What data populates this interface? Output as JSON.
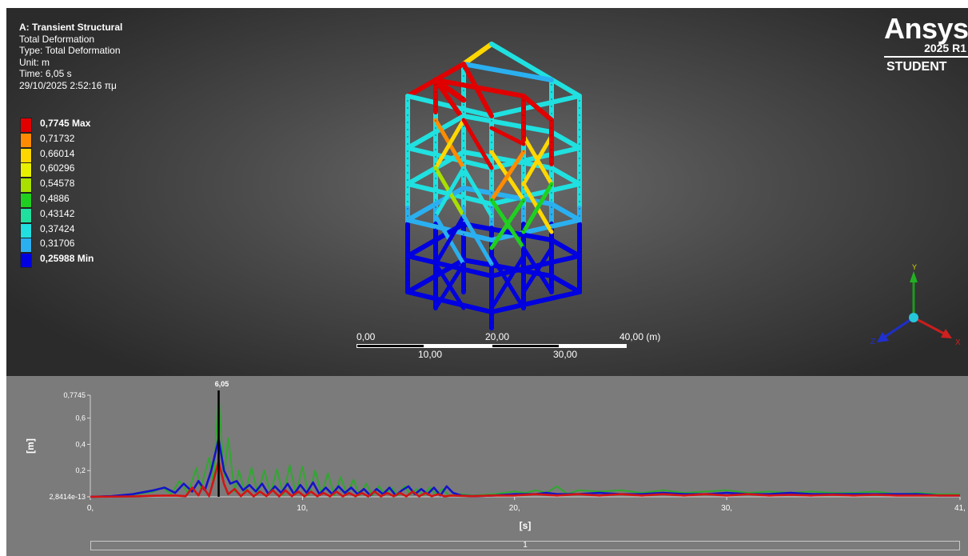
{
  "info": {
    "title": "A: Transient Structural",
    "result_name": "Total Deformation",
    "type": "Type: Total Deformation",
    "unit": "Unit: m",
    "time": "Time: 6,05 s",
    "timestamp": "29/10/2025 2:52:16 πμ"
  },
  "legend": [
    {
      "label": "0,7745 Max",
      "color": "#e00000"
    },
    {
      "label": "0,71732",
      "color": "#ff8c00"
    },
    {
      "label": "0,66014",
      "color": "#ffd700"
    },
    {
      "label": "0,60296",
      "color": "#e8f000"
    },
    {
      "label": "0,54578",
      "color": "#a8e000"
    },
    {
      "label": "0,4886",
      "color": "#20d020"
    },
    {
      "label": "0,43142",
      "color": "#20e0a0"
    },
    {
      "label": "0,37424",
      "color": "#20e0e0"
    },
    {
      "label": "0,31706",
      "color": "#2ab0f0"
    },
    {
      "label": "0,25988 Min",
      "color": "#0000e0"
    }
  ],
  "brand": {
    "name": "Ansys",
    "release": "2025 R1",
    "edition": "STUDENT"
  },
  "scale_bar": {
    "top_labels": [
      "0,00",
      "20,00",
      "40,00 (m)"
    ],
    "bottom_labels": [
      "10,00",
      "30,00"
    ]
  },
  "triad": {
    "x_label": "X",
    "y_label": "Y",
    "z_label": "Z"
  },
  "chart_data": {
    "type": "line",
    "title": "",
    "xlabel": "[s]",
    "ylabel": "[m]",
    "xlim": [
      0,
      41
    ],
    "ylim": [
      2.8414e-13,
      0.7745
    ],
    "x_ticks": [
      "0,",
      "10,",
      "20,",
      "30,",
      "41,"
    ],
    "y_ticks": [
      "2,8414e-13",
      "0,2",
      "0,4",
      "0,6",
      "0,7745"
    ],
    "cursor": {
      "x": 6.05,
      "label": "6,05"
    },
    "step_label": "1",
    "series": [
      {
        "color": "#2fa82f",
        "x": [
          0,
          1,
          2,
          3,
          3.4,
          3.8,
          4.2,
          4.6,
          5,
          5.2,
          5.6,
          5.8,
          6.05,
          6.3,
          6.5,
          6.8,
          7,
          7.3,
          7.6,
          7.9,
          8.2,
          8.5,
          8.8,
          9.1,
          9.4,
          9.7,
          10,
          10.3,
          10.6,
          10.9,
          11.2,
          11.5,
          11.8,
          12.1,
          12.4,
          12.7,
          13,
          13.3,
          13.6,
          13.9,
          14.2,
          14.5,
          14.8,
          15.1,
          15.4,
          15.7,
          16,
          16.3,
          16.6,
          16.9,
          17.5,
          18,
          19,
          20,
          20.5,
          21,
          21.5,
          22,
          22.5,
          23,
          24,
          25,
          26,
          27,
          28,
          29,
          30,
          31,
          32,
          33,
          34,
          35,
          36,
          37,
          38,
          39,
          40,
          41
        ],
        "y": [
          0,
          0.005,
          0.015,
          0.04,
          0.07,
          0.02,
          0.12,
          0.03,
          0.22,
          0.06,
          0.3,
          0.1,
          0.7745,
          0.15,
          0.45,
          0.04,
          0.2,
          0.03,
          0.22,
          0.02,
          0.2,
          0.03,
          0.21,
          0.01,
          0.24,
          0.02,
          0.23,
          0.01,
          0.2,
          0.02,
          0.18,
          0.01,
          0.15,
          0.02,
          0.13,
          0.01,
          0.1,
          0.01,
          0.08,
          0.02,
          0.07,
          0.01,
          0.08,
          0.02,
          0.06,
          0.01,
          0.07,
          0.02,
          0.06,
          0.01,
          0.02,
          0.01,
          0.02,
          0.04,
          0.03,
          0.05,
          0.03,
          0.08,
          0.02,
          0.05,
          0.04,
          0.05,
          0.03,
          0.05,
          0.03,
          0.04,
          0.05,
          0.03,
          0.04,
          0.03,
          0.04,
          0.03,
          0.03,
          0.04,
          0.02,
          0.03,
          0.02,
          0.02
        ]
      },
      {
        "color": "#1414c8",
        "x": [
          0,
          1,
          2,
          3,
          3.5,
          4,
          4.4,
          4.8,
          5.1,
          5.4,
          5.7,
          6.05,
          6.3,
          6.6,
          6.9,
          7.2,
          7.5,
          7.8,
          8.1,
          8.4,
          8.7,
          9,
          9.3,
          9.6,
          9.9,
          10.2,
          10.5,
          10.8,
          11.1,
          11.4,
          11.7,
          12,
          12.3,
          12.6,
          12.9,
          13.2,
          13.5,
          13.8,
          14.1,
          14.4,
          14.7,
          15,
          15.3,
          15.6,
          15.9,
          16.2,
          16.5,
          16.8,
          17.1,
          17.5,
          18,
          19,
          20,
          21,
          21.5,
          22,
          23,
          24,
          25,
          26,
          27,
          28,
          29,
          30,
          31,
          32,
          33,
          34,
          35,
          36,
          37,
          38,
          39,
          40,
          41
        ],
        "y": [
          0,
          0.005,
          0.02,
          0.05,
          0.07,
          0.03,
          0.1,
          0.04,
          0.12,
          0.05,
          0.2,
          0.44,
          0.2,
          0.1,
          0.12,
          0.05,
          0.09,
          0.04,
          0.1,
          0.02,
          0.08,
          0.03,
          0.1,
          0.02,
          0.09,
          0.03,
          0.11,
          0.02,
          0.07,
          0.02,
          0.08,
          0.03,
          0.07,
          0.02,
          0.06,
          0.01,
          0.06,
          0.02,
          0.07,
          0.01,
          0.05,
          0.08,
          0.02,
          0.06,
          0.02,
          0.07,
          0.01,
          0.08,
          0.03,
          0.01,
          0.005,
          0.01,
          0.02,
          0.02,
          0.03,
          0.02,
          0.02,
          0.03,
          0.02,
          0.02,
          0.03,
          0.02,
          0.02,
          0.03,
          0.02,
          0.02,
          0.03,
          0.02,
          0.02,
          0.02,
          0.02,
          0.02,
          0.02,
          0.01,
          0.01
        ]
      },
      {
        "color": "#d21414",
        "x": [
          0,
          2,
          3,
          4,
          4.5,
          4.8,
          5.1,
          5.3,
          5.6,
          5.8,
          6.05,
          6.3,
          6.5,
          6.8,
          7.1,
          7.4,
          7.7,
          8,
          8.3,
          8.6,
          8.9,
          9.2,
          9.5,
          9.8,
          10.1,
          10.4,
          10.7,
          11,
          11.3,
          11.6,
          11.9,
          12.2,
          12.5,
          12.8,
          13.1,
          13.4,
          13.7,
          14,
          14.3,
          14.6,
          14.9,
          15.2,
          15.5,
          15.8,
          16.1,
          16.4,
          16.7,
          17,
          18,
          19,
          20,
          21,
          22,
          23,
          24,
          25,
          26,
          27,
          28,
          29,
          30,
          31,
          32,
          33,
          34,
          35,
          36,
          37,
          38,
          39,
          40,
          41
        ],
        "y": [
          0,
          0.003,
          0.008,
          0.01,
          0.005,
          0.07,
          0.01,
          0.08,
          0.005,
          0.12,
          0.27,
          0.1,
          0.02,
          0.06,
          0.005,
          0.05,
          0.003,
          0.04,
          0.005,
          0.05,
          0.003,
          0.05,
          0.004,
          0.04,
          0.003,
          0.04,
          0.004,
          0.03,
          0.003,
          0.04,
          0.003,
          0.03,
          0.004,
          0.03,
          0.003,
          0.04,
          0.003,
          0.03,
          0.004,
          0.03,
          0.003,
          0.04,
          0.003,
          0.03,
          0.004,
          0.02,
          0.003,
          0.01,
          0.005,
          0.01,
          0.01,
          0.02,
          0.01,
          0.02,
          0.01,
          0.02,
          0.01,
          0.02,
          0.01,
          0.02,
          0.01,
          0.02,
          0.01,
          0.015,
          0.01,
          0.015,
          0.01,
          0.015,
          0.01,
          0.01,
          0.01,
          0.01
        ]
      }
    ]
  }
}
